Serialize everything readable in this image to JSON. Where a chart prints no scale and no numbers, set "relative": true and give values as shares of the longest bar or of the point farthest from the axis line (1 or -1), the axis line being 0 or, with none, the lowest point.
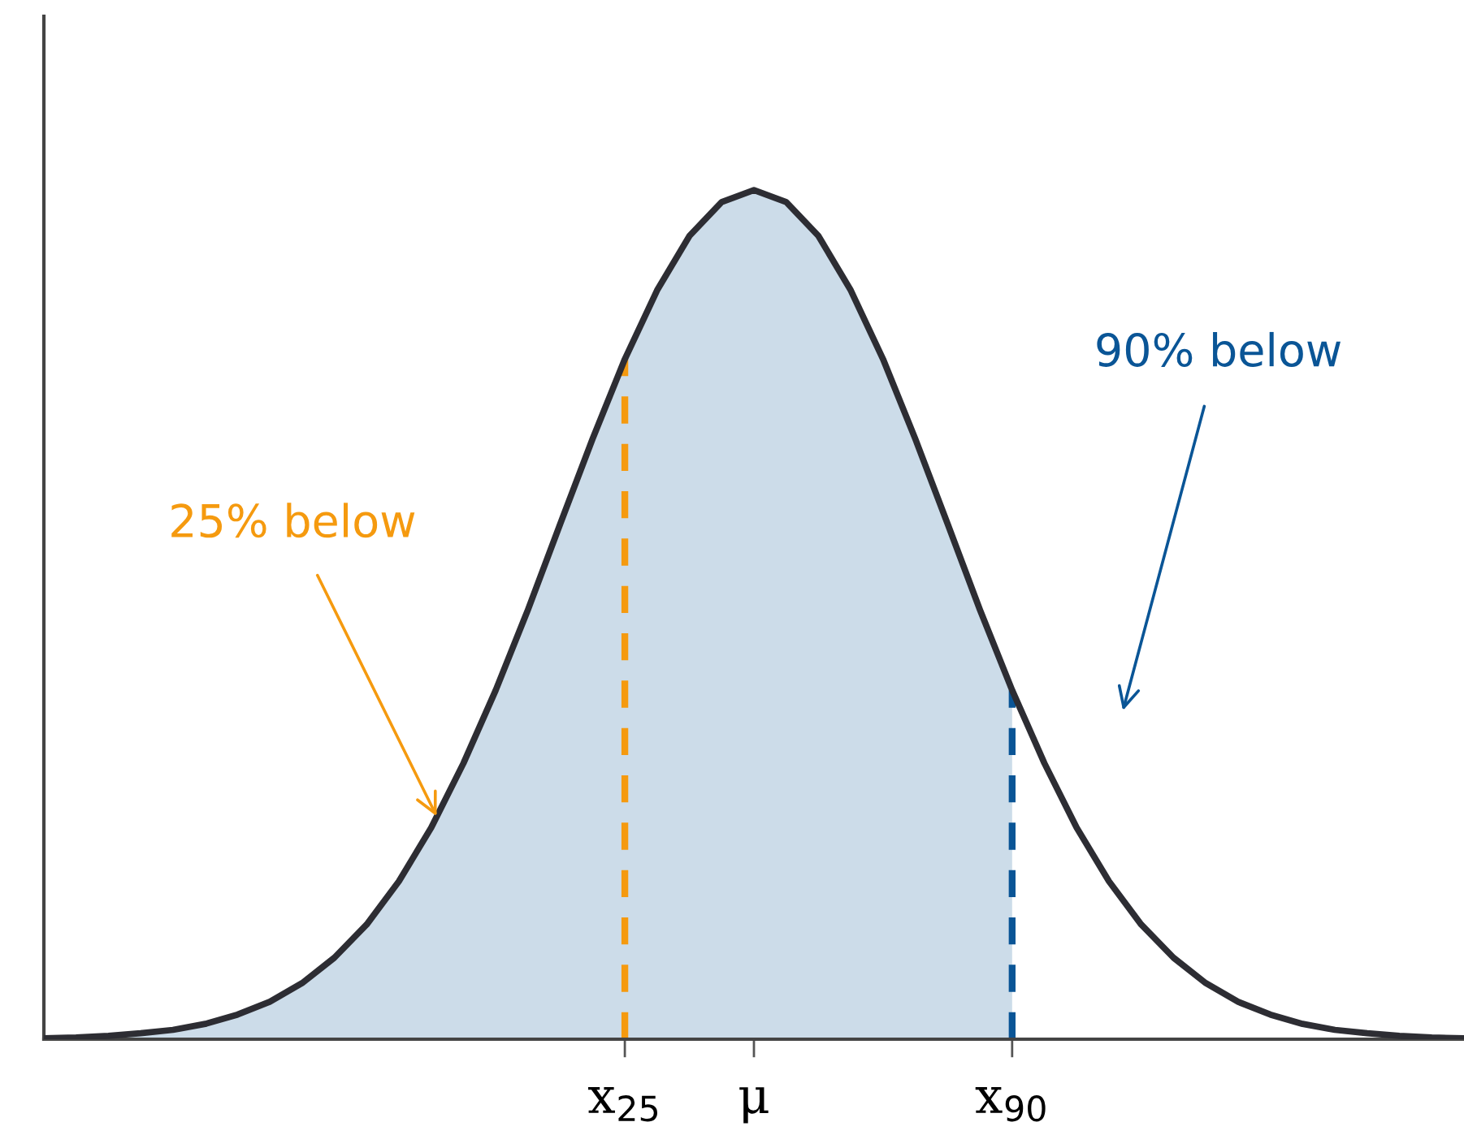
{
  "chart_data": {
    "type": "line",
    "relative": true,
    "categories": [
      null,
      null,
      null,
      null,
      null,
      null,
      null,
      null,
      null,
      null,
      null,
      null,
      null,
      null,
      null,
      null,
      null,
      null,
      "x$_{25}$",
      null,
      null,
      null,
      "μ",
      null,
      null,
      null,
      null,
      null,
      null,
      null,
      "x$_{90}$",
      null,
      null,
      null,
      null,
      null,
      null,
      null,
      null,
      null,
      null,
      null,
      null,
      null,
      null
    ],
    "series": [
      {
        "type": "area",
        "color": "#ccdce9",
        "values": [
          0.001,
          0.002,
          0.004,
          0.007,
          0.011,
          0.018,
          0.029,
          0.044,
          0.066,
          0.096,
          0.135,
          0.186,
          0.249,
          0.325,
          0.411,
          0.506,
          0.607,
          0.707,
          0.801,
          0.882,
          0.946,
          0.986,
          1,
          0.986,
          0.946,
          0.882,
          0.801,
          0.707,
          0.607,
          0.506,
          0.411,
          null,
          null,
          null,
          null,
          null,
          null,
          null,
          null,
          null,
          null,
          null,
          null,
          null,
          null
        ]
      },
      {
        "color": "#2d2d33",
        "values": [
          0.001,
          0.002,
          0.004,
          0.007,
          0.011,
          0.018,
          0.029,
          0.044,
          0.066,
          0.096,
          0.135,
          0.186,
          0.249,
          0.325,
          0.411,
          0.506,
          0.607,
          0.707,
          0.801,
          0.882,
          0.946,
          0.986,
          1,
          0.986,
          0.946,
          0.882,
          0.801,
          0.707,
          0.607,
          0.506,
          0.411,
          0.325,
          0.249,
          0.186,
          0.135,
          0.096,
          0.066,
          0.044,
          0.029,
          0.018,
          0.011,
          0.007,
          0.004,
          0.002,
          0.001
        ]
      }
    ],
    "ref_lines": [
      {
        "axis": "x",
        "value": "x$_{25}$",
        "color": "#f59a0f",
        "line_style": "dashed"
      },
      {
        "axis": "x",
        "value": "x$_{90}$",
        "color": "#0a5596",
        "line_style": "dashed"
      }
    ],
    "annotations": [
      "25% below",
      "90% below"
    ]
  }
}
